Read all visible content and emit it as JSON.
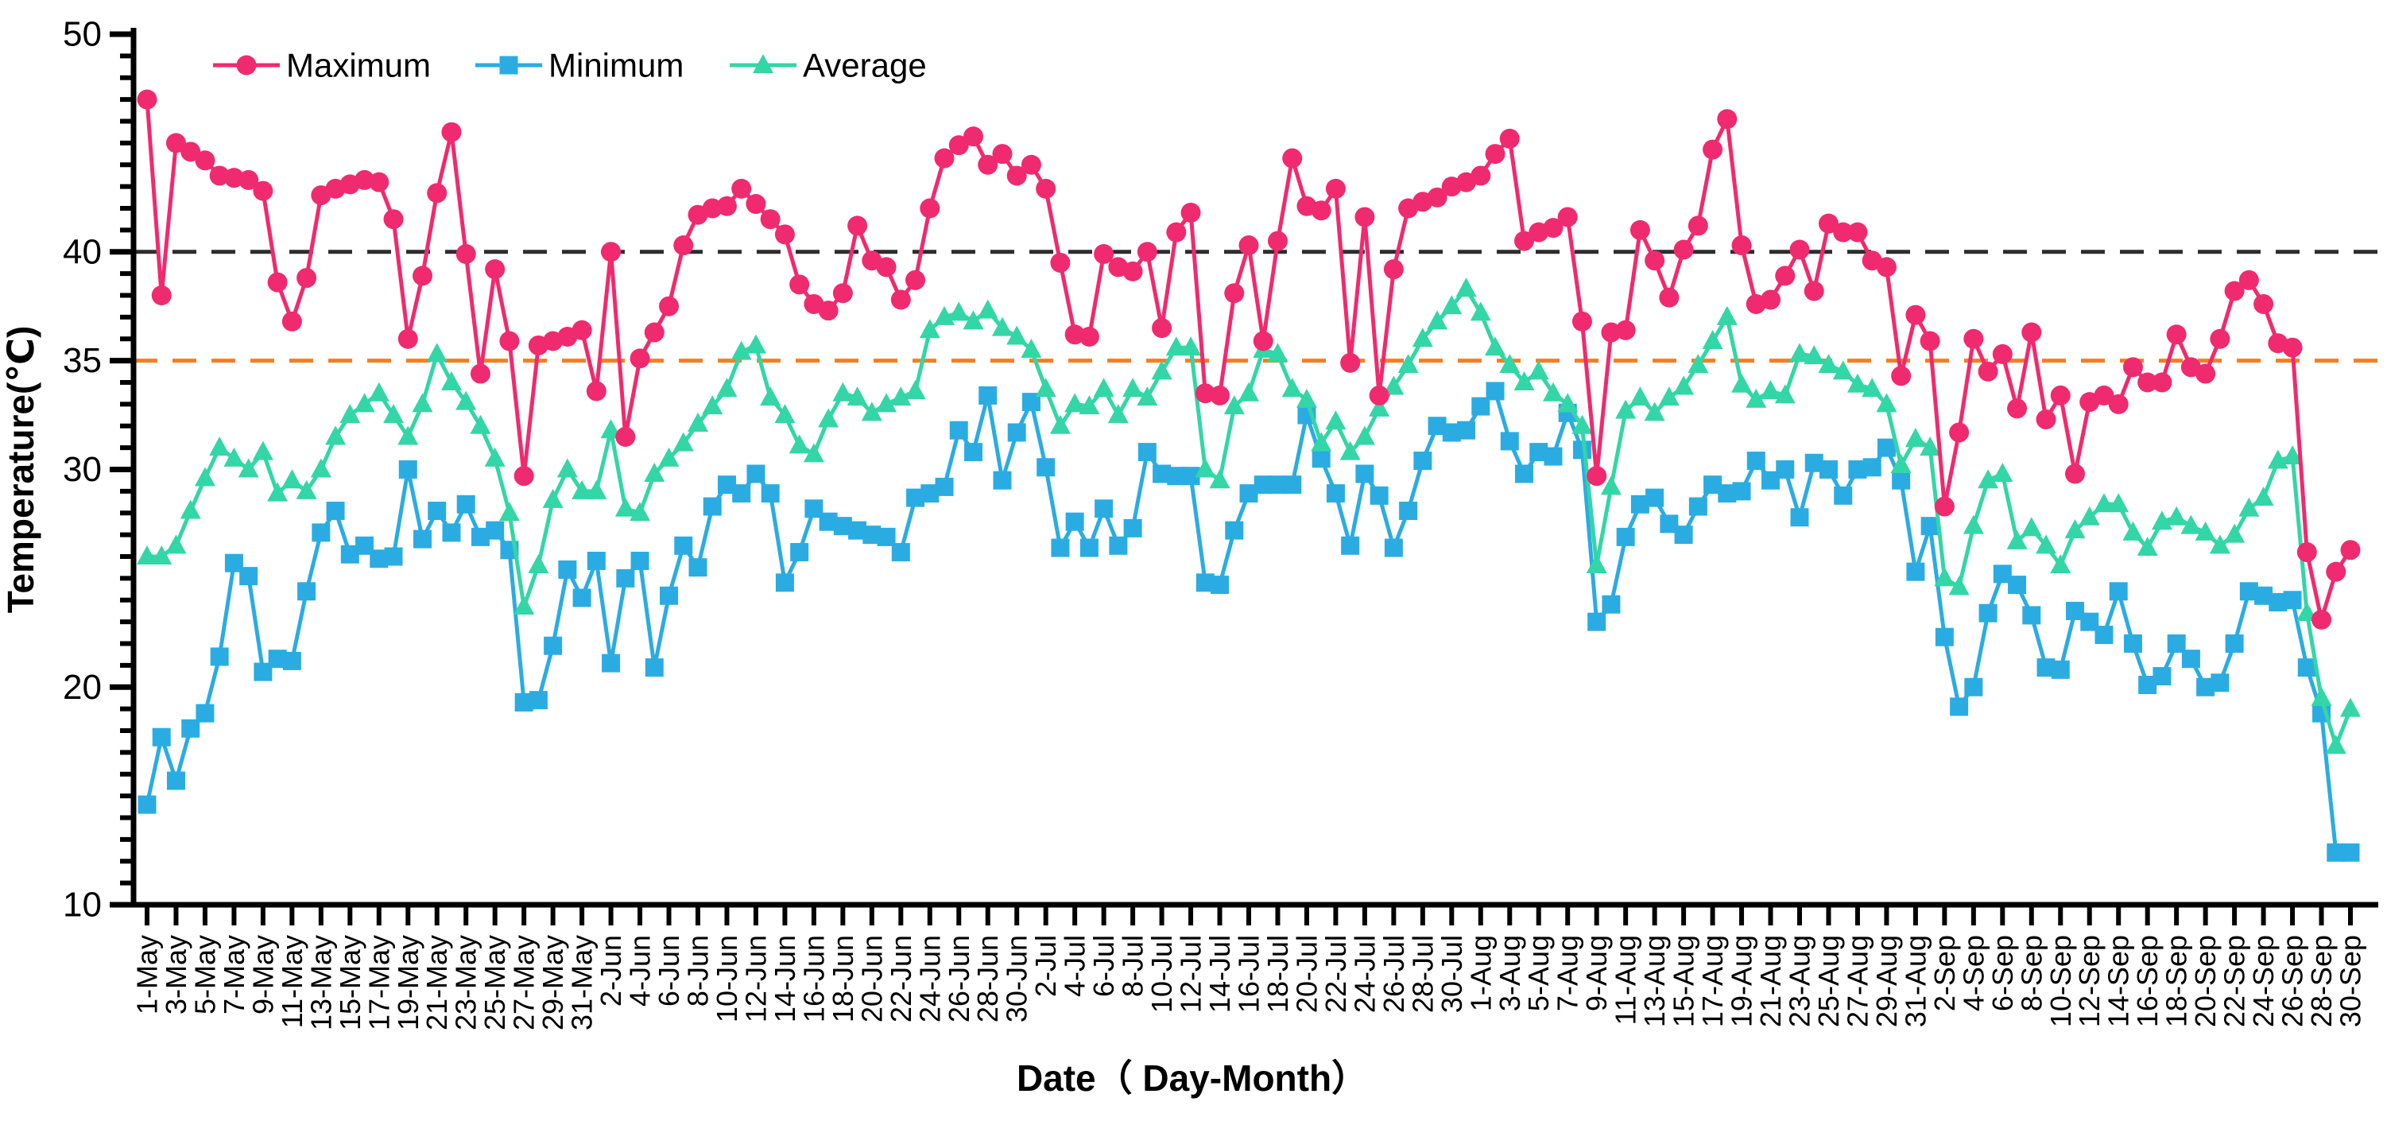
{
  "chart_data": {
    "type": "line",
    "title": "",
    "xlabel": "Date（ Day-Month）",
    "ylabel": "Temperature(℃)",
    "ylim": [
      10,
      50
    ],
    "y_major_ticks": [
      10,
      20,
      30,
      35,
      40,
      50
    ],
    "y_minor_step": 1,
    "x_label_every": 2,
    "grid": false,
    "legend_position": "top-left-inside",
    "reference_lines": [
      {
        "value": 40,
        "color": "#2d2d2d",
        "style": "dashed",
        "name": "40-degree-line"
      },
      {
        "value": 35,
        "color": "#f57e20",
        "style": "dashed",
        "name": "35-degree-line"
      }
    ],
    "dates": [
      "1-May",
      "2-May",
      "3-May",
      "4-May",
      "5-May",
      "6-May",
      "7-May",
      "8-May",
      "9-May",
      "10-May",
      "11-May",
      "12-May",
      "13-May",
      "14-May",
      "15-May",
      "16-May",
      "17-May",
      "18-May",
      "19-May",
      "20-May",
      "21-May",
      "22-May",
      "23-May",
      "24-May",
      "25-May",
      "26-May",
      "27-May",
      "28-May",
      "29-May",
      "30-May",
      "31-May",
      "1-Jun",
      "2-Jun",
      "3-Jun",
      "4-Jun",
      "5-Jun",
      "6-Jun",
      "7-Jun",
      "8-Jun",
      "9-Jun",
      "10-Jun",
      "11-Jun",
      "12-Jun",
      "13-Jun",
      "14-Jun",
      "15-Jun",
      "16-Jun",
      "17-Jun",
      "18-Jun",
      "19-Jun",
      "20-Jun",
      "21-Jun",
      "22-Jun",
      "23-Jun",
      "24-Jun",
      "25-Jun",
      "26-Jun",
      "27-Jun",
      "28-Jun",
      "29-Jun",
      "30-Jun",
      "1-Jul",
      "2-Jul",
      "3-Jul",
      "4-Jul",
      "5-Jul",
      "6-Jul",
      "7-Jul",
      "8-Jul",
      "9-Jul",
      "10-Jul",
      "11-Jul",
      "12-Jul",
      "13-Jul",
      "14-Jul",
      "15-Jul",
      "16-Jul",
      "17-Jul",
      "18-Jul",
      "19-Jul",
      "20-Jul",
      "21-Jul",
      "22-Jul",
      "23-Jul",
      "24-Jul",
      "25-Jul",
      "26-Jul",
      "27-Jul",
      "28-Jul",
      "29-Jul",
      "30-Jul",
      "31-Jul",
      "1-Aug",
      "2-Aug",
      "3-Aug",
      "4-Aug",
      "5-Aug",
      "6-Aug",
      "7-Aug",
      "8-Aug",
      "9-Aug",
      "10-Aug",
      "11-Aug",
      "12-Aug",
      "13-Aug",
      "14-Aug",
      "15-Aug",
      "16-Aug",
      "17-Aug",
      "18-Aug",
      "19-Aug",
      "20-Aug",
      "21-Aug",
      "22-Aug",
      "23-Aug",
      "24-Aug",
      "25-Aug",
      "26-Aug",
      "27-Aug",
      "28-Aug",
      "29-Aug",
      "30-Aug",
      "31-Aug",
      "1-Sep",
      "2-Sep",
      "3-Sep",
      "4-Sep",
      "5-Sep",
      "6-Sep",
      "7-Sep",
      "8-Sep",
      "9-Sep",
      "10-Sep",
      "11-Sep",
      "12-Sep",
      "13-Sep",
      "14-Sep",
      "15-Sep",
      "16-Sep",
      "17-Sep",
      "18-Sep",
      "19-Sep",
      "20-Sep",
      "21-Sep",
      "22-Sep",
      "23-Sep",
      "24-Sep",
      "25-Sep",
      "26-Sep",
      "27-Sep",
      "28-Sep",
      "29-Sep",
      "30-Sep"
    ],
    "series": [
      {
        "name": "Maximum",
        "color": "#f02a6e",
        "marker": "circle",
        "values": [
          47.0,
          38.0,
          45.0,
          44.6,
          44.2,
          43.5,
          43.4,
          43.3,
          42.8,
          38.6,
          36.8,
          38.8,
          42.6,
          42.9,
          43.1,
          43.3,
          43.2,
          41.5,
          36.0,
          38.9,
          42.7,
          45.5,
          39.9,
          34.4,
          39.2,
          35.9,
          29.7,
          35.7,
          35.9,
          36.1,
          36.4,
          33.6,
          40.0,
          31.5,
          35.1,
          36.3,
          37.5,
          40.3,
          41.7,
          42.0,
          42.1,
          42.9,
          42.2,
          41.5,
          40.8,
          38.5,
          37.6,
          37.3,
          38.1,
          41.2,
          39.6,
          39.3,
          37.8,
          38.7,
          42.0,
          44.3,
          44.9,
          45.3,
          44.0,
          44.5,
          43.5,
          44.0,
          42.9,
          39.5,
          36.2,
          36.1,
          39.9,
          39.3,
          39.1,
          40.0,
          36.5,
          40.9,
          41.8,
          33.5,
          33.4,
          38.1,
          40.3,
          35.9,
          40.5,
          44.3,
          42.1,
          41.9,
          42.9,
          34.9,
          41.6,
          33.4,
          39.2,
          42.0,
          42.3,
          42.5,
          43.0,
          43.2,
          43.5,
          44.5,
          45.2,
          40.5,
          40.9,
          41.1,
          41.6,
          36.8,
          29.7,
          36.3,
          36.4,
          41.0,
          39.6,
          37.9,
          40.1,
          41.2,
          44.7,
          46.1,
          40.3,
          37.6,
          37.8,
          38.9,
          40.1,
          38.2,
          41.3,
          40.9,
          40.9,
          39.6,
          39.3,
          34.3,
          37.1,
          35.9,
          28.3,
          31.7,
          36.0,
          34.5,
          35.3,
          32.8,
          36.3,
          32.3,
          33.4,
          29.8,
          33.1,
          33.4,
          33.0,
          34.7,
          34.0,
          34.0,
          36.2,
          34.7,
          34.4,
          36.0,
          38.2,
          38.7,
          37.6,
          35.8,
          35.6,
          26.2,
          23.1,
          25.3,
          26.3
        ]
      },
      {
        "name": "Minimum",
        "color": "#2aace2",
        "marker": "square",
        "values": [
          14.6,
          17.7,
          15.7,
          18.1,
          18.8,
          21.4,
          25.7,
          25.1,
          20.7,
          21.3,
          21.2,
          24.4,
          27.1,
          28.1,
          26.1,
          26.5,
          25.9,
          26.0,
          30.0,
          26.8,
          28.1,
          27.1,
          28.4,
          26.9,
          27.2,
          26.3,
          19.3,
          19.4,
          21.9,
          25.4,
          24.1,
          25.8,
          21.1,
          25.0,
          25.8,
          20.9,
          24.2,
          26.5,
          25.5,
          28.3,
          29.3,
          28.9,
          29.8,
          28.9,
          24.8,
          26.2,
          28.2,
          27.6,
          27.4,
          27.2,
          27.0,
          26.9,
          26.2,
          28.7,
          28.9,
          29.2,
          31.8,
          30.8,
          33.4,
          29.5,
          31.7,
          33.1,
          30.1,
          26.4,
          27.6,
          26.4,
          28.2,
          26.5,
          27.3,
          30.8,
          29.8,
          29.7,
          29.7,
          24.8,
          24.7,
          27.2,
          28.9,
          29.3,
          29.3,
          29.3,
          32.5,
          30.5,
          28.9,
          26.5,
          29.8,
          28.8,
          26.4,
          28.1,
          30.4,
          32.0,
          31.7,
          31.8,
          32.9,
          33.6,
          31.3,
          29.8,
          30.8,
          30.6,
          32.6,
          30.9,
          23.0,
          23.8,
          26.9,
          28.4,
          28.7,
          27.5,
          27.0,
          28.3,
          29.3,
          28.9,
          29.0,
          30.4,
          29.5,
          30.0,
          27.8,
          30.3,
          30.0,
          28.8,
          30.0,
          30.1,
          31.0,
          29.5,
          25.3,
          27.4,
          22.3,
          19.1,
          20.0,
          23.4,
          25.2,
          24.7,
          23.3,
          20.9,
          20.8,
          23.5,
          23.0,
          22.4,
          24.4,
          22.0,
          20.1,
          20.5,
          22.0,
          21.3,
          20.0,
          20.2,
          22.0,
          24.4,
          24.2,
          23.9,
          24.0,
          20.9,
          18.8,
          12.4,
          12.4
        ]
      },
      {
        "name": "Average",
        "color": "#33d6a6",
        "marker": "triangle",
        "values": [
          26.0,
          26.0,
          26.5,
          28.1,
          29.6,
          31.0,
          30.5,
          30.0,
          30.8,
          28.9,
          29.5,
          29.0,
          30.0,
          31.5,
          32.5,
          33.0,
          33.5,
          32.5,
          31.5,
          33.0,
          35.3,
          34.0,
          33.1,
          32.0,
          30.5,
          28.0,
          23.7,
          25.6,
          28.6,
          30.0,
          29.0,
          29.0,
          31.8,
          28.2,
          28.0,
          29.8,
          30.5,
          31.2,
          32.1,
          32.9,
          33.7,
          35.4,
          35.7,
          33.3,
          32.5,
          31.1,
          30.7,
          32.3,
          33.5,
          33.3,
          32.6,
          33.0,
          33.3,
          33.6,
          36.4,
          37.0,
          37.2,
          36.8,
          37.3,
          36.5,
          36.1,
          35.5,
          33.7,
          32.0,
          33.0,
          32.9,
          33.7,
          32.5,
          33.7,
          33.3,
          34.5,
          35.6,
          35.6,
          30.0,
          29.5,
          32.9,
          33.5,
          35.5,
          35.3,
          33.7,
          33.2,
          31.2,
          32.2,
          30.8,
          31.5,
          32.8,
          33.8,
          34.8,
          36.0,
          36.8,
          37.5,
          38.3,
          37.2,
          35.6,
          34.8,
          34.0,
          34.5,
          33.5,
          33.0,
          32.0,
          25.6,
          29.2,
          32.7,
          33.3,
          32.6,
          33.3,
          33.8,
          34.8,
          35.9,
          37.0,
          33.9,
          33.2,
          33.6,
          33.4,
          35.3,
          35.2,
          34.8,
          34.5,
          33.9,
          33.7,
          33.0,
          30.2,
          31.4,
          31.0,
          25.0,
          24.6,
          27.4,
          29.5,
          29.8,
          26.7,
          27.3,
          26.5,
          25.6,
          27.2,
          27.8,
          28.4,
          28.4,
          27.1,
          26.4,
          27.6,
          27.8,
          27.4,
          27.1,
          26.5,
          27.0,
          28.2,
          28.7,
          30.4,
          30.6,
          23.4,
          19.5,
          17.3,
          19.0
        ]
      }
    ],
    "legend": {
      "items": [
        "Maximum",
        "Minimum",
        "Average"
      ]
    }
  },
  "layout_colors": {
    "axis": "#000000",
    "background": "#ffffff"
  }
}
